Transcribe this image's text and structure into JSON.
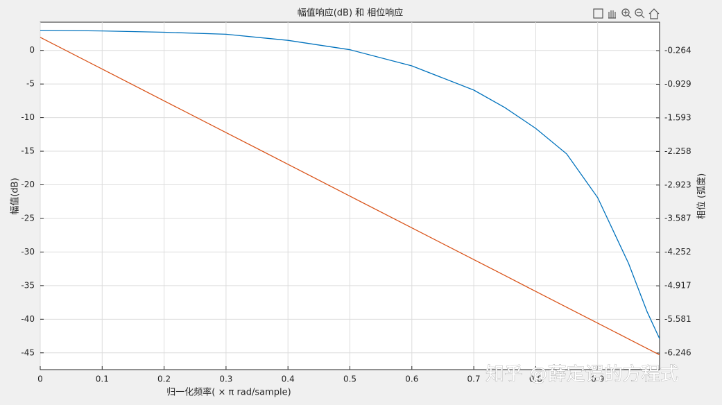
{
  "chart_data": {
    "type": "line",
    "title": "幅值响应(dB) 和 相位响应",
    "xlabel": "归一化频率( × π  rad/sample)",
    "ylabel": "幅值(dB)",
    "y2label": "相位 (弧度)",
    "annotation": "知乎 @薛定谔的方程式",
    "x": [
      0,
      0.1,
      0.2,
      0.3,
      0.4,
      0.5,
      0.6,
      0.7,
      0.75,
      0.8,
      0.85,
      0.9,
      0.95,
      0.98,
      1
    ],
    "series": [
      {
        "color": "#0072bd",
        "values": [
          3,
          2.9,
          2.7,
          2.4,
          1.5,
          0.1,
          -2.3,
          -5.9,
          -8.5,
          -11.6,
          -15.4,
          -21.9,
          -31.7,
          -38.9,
          -42.9
        ]
      },
      {
        "color": "#d95319",
        "axis": "y2",
        "values": [
          0,
          -0.628,
          -1.257,
          -1.885,
          -2.513,
          -3.142,
          -3.77,
          -4.398,
          -4.712,
          -5.027,
          -5.341,
          -5.655,
          -5.969,
          -6.158,
          -6.283
        ]
      }
    ],
    "xlim": [
      0,
      1
    ],
    "xticks": [
      0,
      0.1,
      0.2,
      0.3,
      0.4,
      0.5,
      0.6,
      0.7,
      0.8,
      0.9
    ],
    "ylim": [
      -47.5,
      4.2
    ],
    "yticks": [
      0,
      -5,
      -10,
      -15,
      -20,
      -25,
      -30,
      -35,
      -40,
      -45
    ],
    "y2lim": [
      -6.575,
      0.299
    ],
    "y2ticks": [
      -0.264,
      -0.929,
      -1.593,
      -2.258,
      -2.923,
      -3.587,
      -4.252,
      -4.917,
      -5.581,
      -6.246
    ],
    "grid": true
  }
}
